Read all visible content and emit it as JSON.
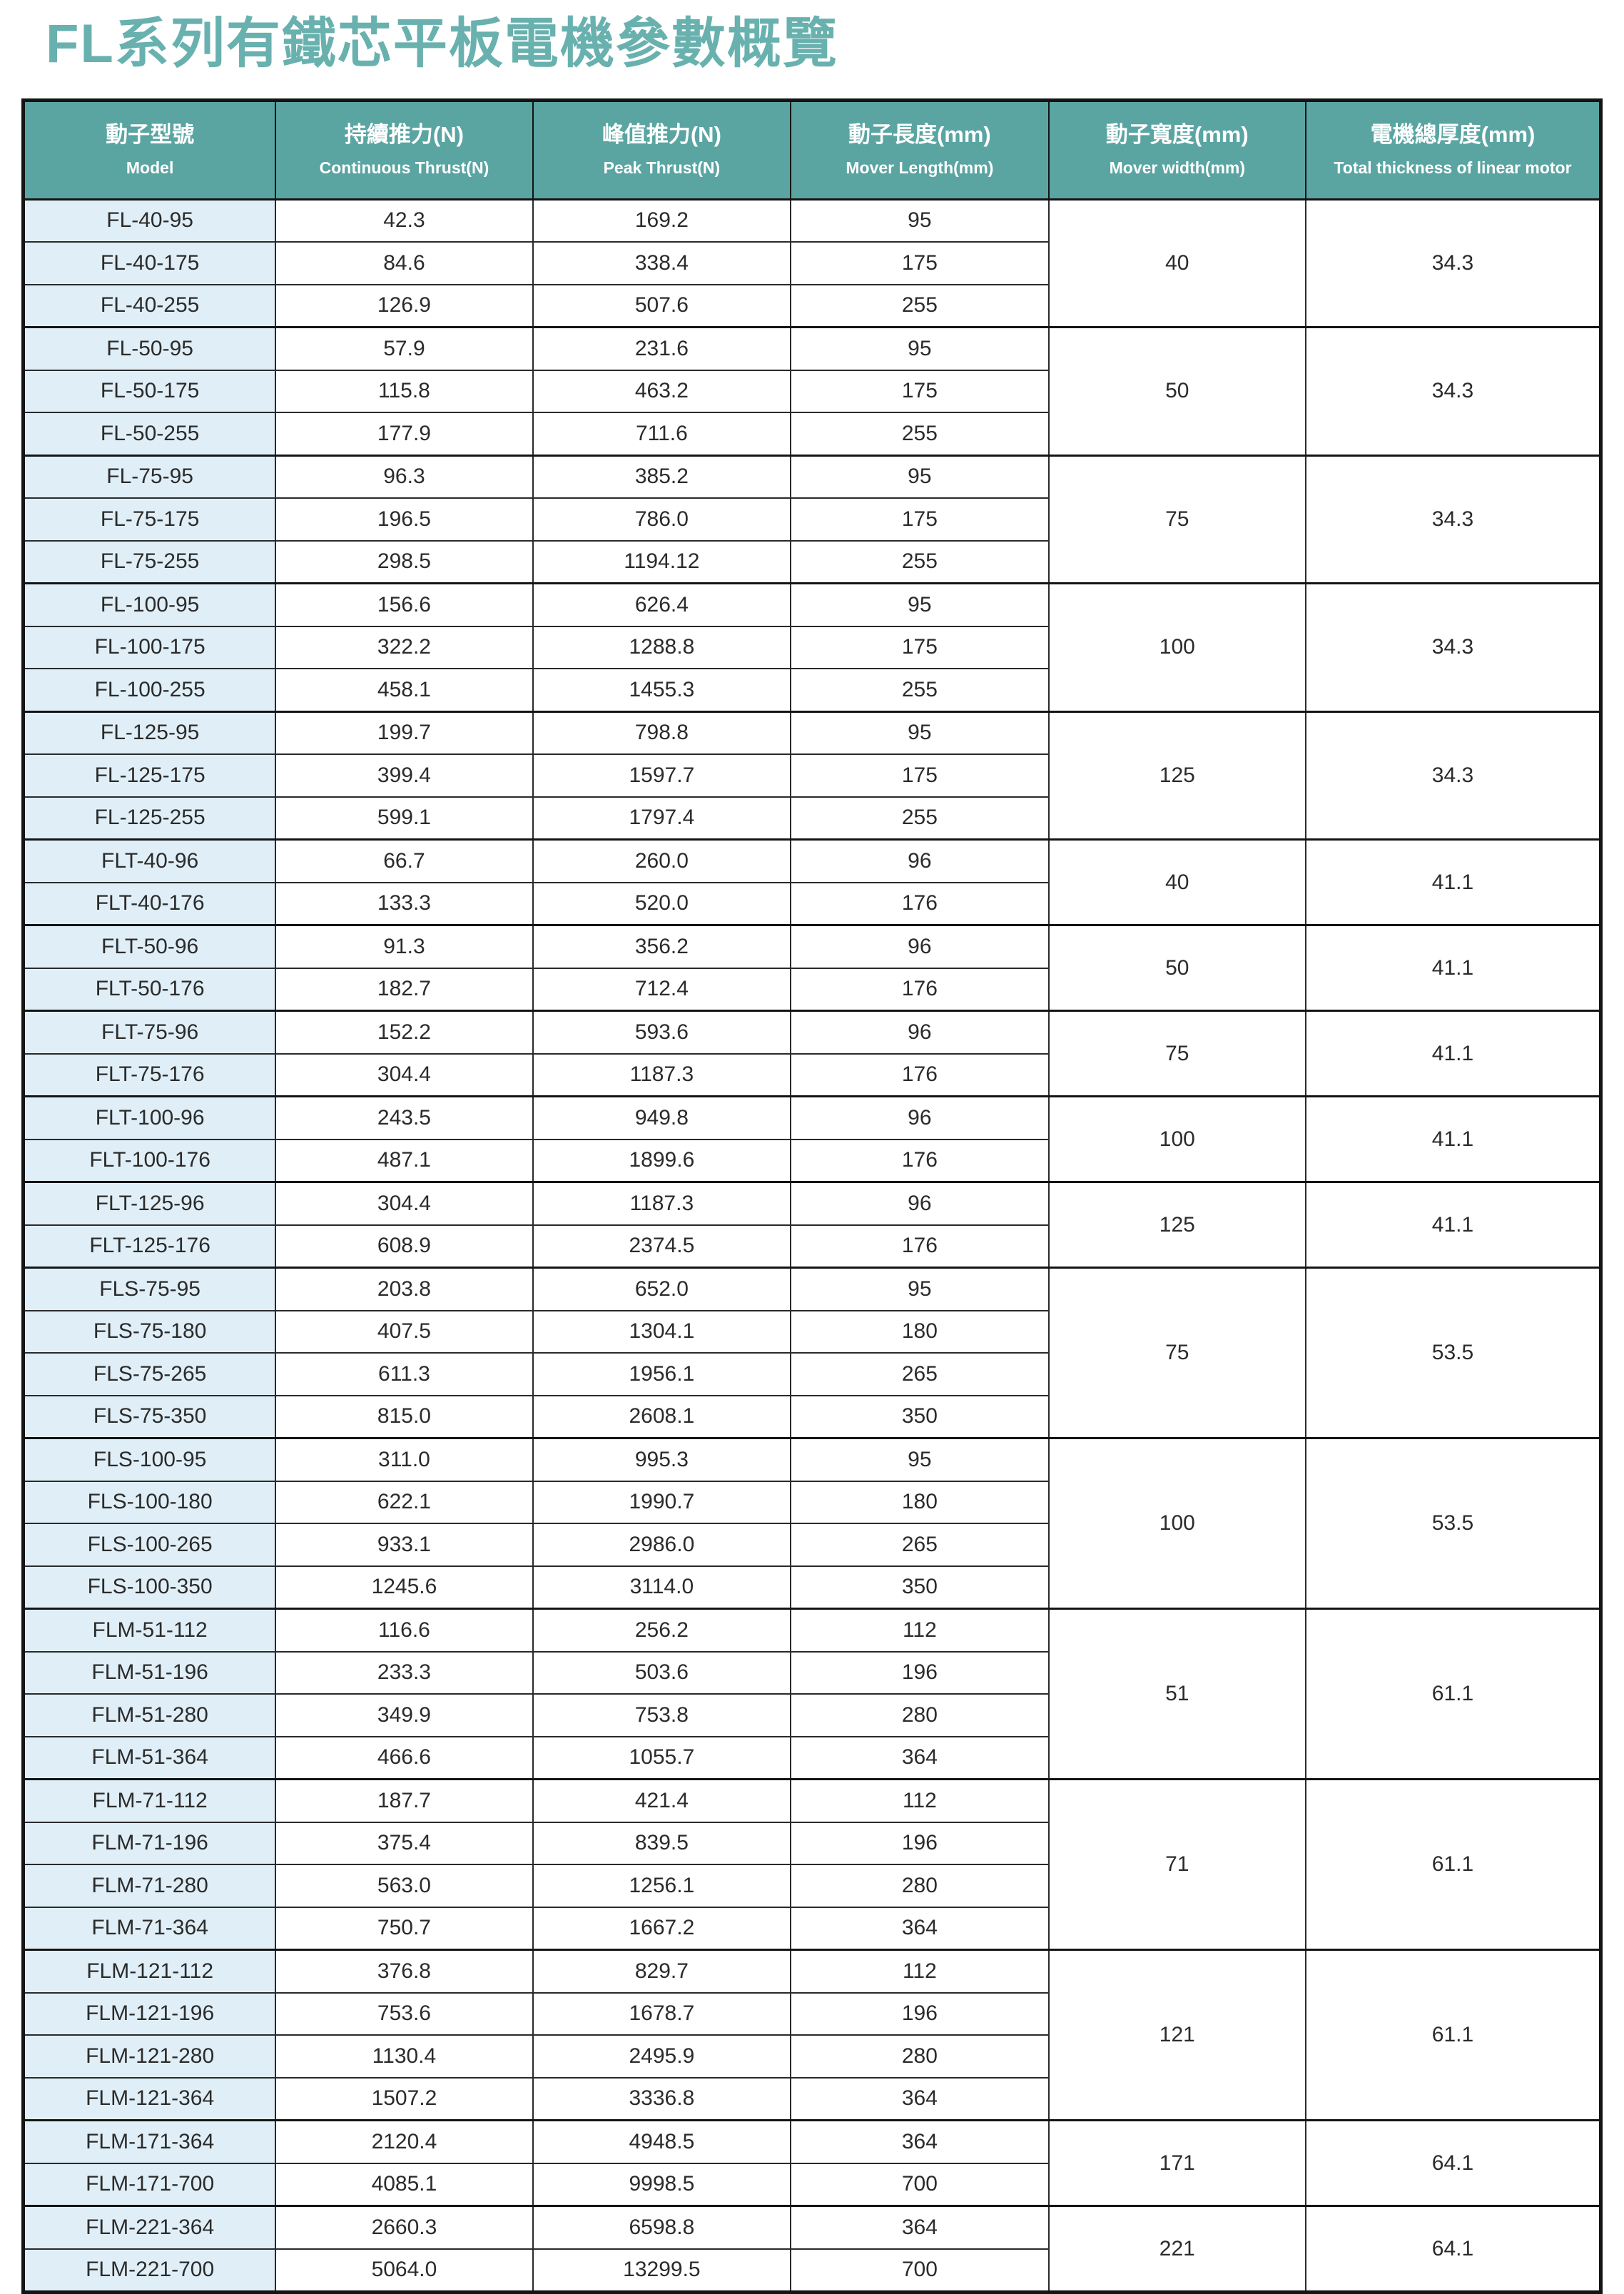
{
  "page_title": "FL系列有鐵芯平板電機參數概覽",
  "colors": {
    "header_bg": "#5aa5a2",
    "title_color": "#69b1ae",
    "model_cell_bg": "#e0eff7",
    "border": "#2a2a2a",
    "border_strong": "#141414"
  },
  "table": {
    "columns": [
      {
        "zh": "動子型號",
        "en": "Model"
      },
      {
        "zh": "持續推力(N)",
        "en": "Continuous Thrust(N)"
      },
      {
        "zh": "峰值推力(N)",
        "en": "Peak Thrust(N)"
      },
      {
        "zh": "動子長度(mm)",
        "en": "Mover Length(mm)"
      },
      {
        "zh": "動子寬度(mm)",
        "en": "Mover width(mm)"
      },
      {
        "zh": "電機總厚度(mm)",
        "en": "Total thickness of linear motor"
      }
    ],
    "groups": [
      {
        "mover_width": "40",
        "total_thickness": "34.3",
        "rows": [
          [
            "FL-40-95",
            "42.3",
            "169.2",
            "95"
          ],
          [
            "FL-40-175",
            "84.6",
            "338.4",
            "175"
          ],
          [
            "FL-40-255",
            "126.9",
            "507.6",
            "255"
          ]
        ]
      },
      {
        "mover_width": "50",
        "total_thickness": "34.3",
        "rows": [
          [
            "FL-50-95",
            "57.9",
            "231.6",
            "95"
          ],
          [
            "FL-50-175",
            "115.8",
            "463.2",
            "175"
          ],
          [
            "FL-50-255",
            "177.9",
            "711.6",
            "255"
          ]
        ]
      },
      {
        "mover_width": "75",
        "total_thickness": "34.3",
        "rows": [
          [
            "FL-75-95",
            "96.3",
            "385.2",
            "95"
          ],
          [
            "FL-75-175",
            "196.5",
            "786.0",
            "175"
          ],
          [
            "FL-75-255",
            "298.5",
            "1194.12",
            "255"
          ]
        ]
      },
      {
        "mover_width": "100",
        "total_thickness": "34.3",
        "rows": [
          [
            "FL-100-95",
            "156.6",
            "626.4",
            "95"
          ],
          [
            "FL-100-175",
            "322.2",
            "1288.8",
            "175"
          ],
          [
            "FL-100-255",
            "458.1",
            "1455.3",
            "255"
          ]
        ]
      },
      {
        "mover_width": "125",
        "total_thickness": "34.3",
        "rows": [
          [
            "FL-125-95",
            "199.7",
            "798.8",
            "95"
          ],
          [
            "FL-125-175",
            "399.4",
            "1597.7",
            "175"
          ],
          [
            "FL-125-255",
            "599.1",
            "1797.4",
            "255"
          ]
        ]
      },
      {
        "mover_width": "40",
        "total_thickness": "41.1",
        "rows": [
          [
            "FLT-40-96",
            "66.7",
            "260.0",
            "96"
          ],
          [
            "FLT-40-176",
            "133.3",
            "520.0",
            "176"
          ]
        ]
      },
      {
        "mover_width": "50",
        "total_thickness": "41.1",
        "rows": [
          [
            "FLT-50-96",
            "91.3",
            "356.2",
            "96"
          ],
          [
            "FLT-50-176",
            "182.7",
            "712.4",
            "176"
          ]
        ]
      },
      {
        "mover_width": "75",
        "total_thickness": "41.1",
        "rows": [
          [
            "FLT-75-96",
            "152.2",
            "593.6",
            "96"
          ],
          [
            "FLT-75-176",
            "304.4",
            "1187.3",
            "176"
          ]
        ]
      },
      {
        "mover_width": "100",
        "total_thickness": "41.1",
        "rows": [
          [
            "FLT-100-96",
            "243.5",
            "949.8",
            "96"
          ],
          [
            "FLT-100-176",
            "487.1",
            "1899.6",
            "176"
          ]
        ]
      },
      {
        "mover_width": "125",
        "total_thickness": "41.1",
        "rows": [
          [
            "FLT-125-96",
            "304.4",
            "1187.3",
            "96"
          ],
          [
            "FLT-125-176",
            "608.9",
            "2374.5",
            "176"
          ]
        ]
      },
      {
        "mover_width": "75",
        "total_thickness": "53.5",
        "rows": [
          [
            "FLS-75-95",
            "203.8",
            "652.0",
            "95"
          ],
          [
            "FLS-75-180",
            "407.5",
            "1304.1",
            "180"
          ],
          [
            "FLS-75-265",
            "611.3",
            "1956.1",
            "265"
          ],
          [
            "FLS-75-350",
            "815.0",
            "2608.1",
            "350"
          ]
        ]
      },
      {
        "mover_width": "100",
        "total_thickness": "53.5",
        "rows": [
          [
            "FLS-100-95",
            "311.0",
            "995.3",
            "95"
          ],
          [
            "FLS-100-180",
            "622.1",
            "1990.7",
            "180"
          ],
          [
            "FLS-100-265",
            "933.1",
            "2986.0",
            "265"
          ],
          [
            "FLS-100-350",
            "1245.6",
            "3114.0",
            "350"
          ]
        ]
      },
      {
        "mover_width": "51",
        "total_thickness": "61.1",
        "rows": [
          [
            "FLM-51-112",
            "116.6",
            "256.2",
            "112"
          ],
          [
            "FLM-51-196",
            "233.3",
            "503.6",
            "196"
          ],
          [
            "FLM-51-280",
            "349.9",
            "753.8",
            "280"
          ],
          [
            "FLM-51-364",
            "466.6",
            "1055.7",
            "364"
          ]
        ]
      },
      {
        "mover_width": "71",
        "total_thickness": "61.1",
        "rows": [
          [
            "FLM-71-112",
            "187.7",
            "421.4",
            "112"
          ],
          [
            "FLM-71-196",
            "375.4",
            "839.5",
            "196"
          ],
          [
            "FLM-71-280",
            "563.0",
            "1256.1",
            "280"
          ],
          [
            "FLM-71-364",
            "750.7",
            "1667.2",
            "364"
          ]
        ]
      },
      {
        "mover_width": "121",
        "total_thickness": "61.1",
        "rows": [
          [
            "FLM-121-112",
            "376.8",
            "829.7",
            "112"
          ],
          [
            "FLM-121-196",
            "753.6",
            "1678.7",
            "196"
          ],
          [
            "FLM-121-280",
            "1130.4",
            "2495.9",
            "280"
          ],
          [
            "FLM-121-364",
            "1507.2",
            "3336.8",
            "364"
          ]
        ]
      },
      {
        "mover_width": "171",
        "total_thickness": "64.1",
        "rows": [
          [
            "FLM-171-364",
            "2120.4",
            "4948.5",
            "364"
          ],
          [
            "FLM-171-700",
            "4085.1",
            "9998.5",
            "700"
          ]
        ]
      },
      {
        "mover_width": "221",
        "total_thickness": "64.1",
        "rows": [
          [
            "FLM-221-364",
            "2660.3",
            "6598.8",
            "364"
          ],
          [
            "FLM-221-700",
            "5064.0",
            "13299.5",
            "700"
          ]
        ]
      }
    ]
  }
}
